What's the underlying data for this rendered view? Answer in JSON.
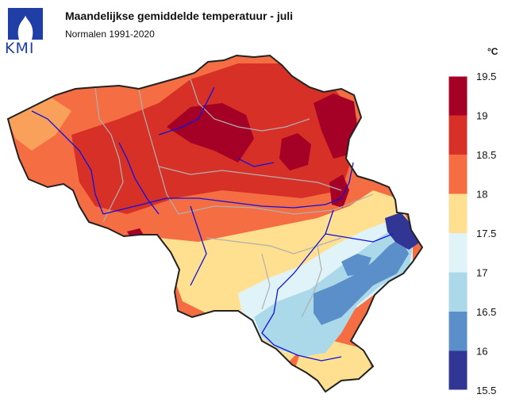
{
  "header": {
    "title": "Maandelijkse gemiddelde temperatuur - juli",
    "subtitle": "Normalen 1991-2020"
  },
  "logo": {
    "text": "KMI",
    "color": "#1f3fa6"
  },
  "legend": {
    "unit": "°C",
    "ticks": [
      "19.5",
      "19",
      "18.5",
      "18",
      "17.5",
      "17",
      "16.5",
      "16",
      "15.5"
    ],
    "bins": [
      {
        "from": 19.0,
        "to": 19.5,
        "color": "#a50026"
      },
      {
        "from": 18.5,
        "to": 19.0,
        "color": "#d73027"
      },
      {
        "from": 18.0,
        "to": 18.5,
        "color": "#f46d43"
      },
      {
        "from": 17.5,
        "to": 18.0,
        "color": "#fee090"
      },
      {
        "from": 17.0,
        "to": 17.5,
        "color": "#e0f3f8"
      },
      {
        "from": 16.5,
        "to": 17.0,
        "color": "#abd9e9"
      },
      {
        "from": 16.0,
        "to": 16.5,
        "color": "#5b8fc9"
      },
      {
        "from": 15.5,
        "to": 16.0,
        "color": "#313695"
      }
    ]
  },
  "map": {
    "region": "Belgium",
    "outline_color": "#222222",
    "river_color": "#1010e0",
    "province_border_color": "#b0b0b0"
  }
}
